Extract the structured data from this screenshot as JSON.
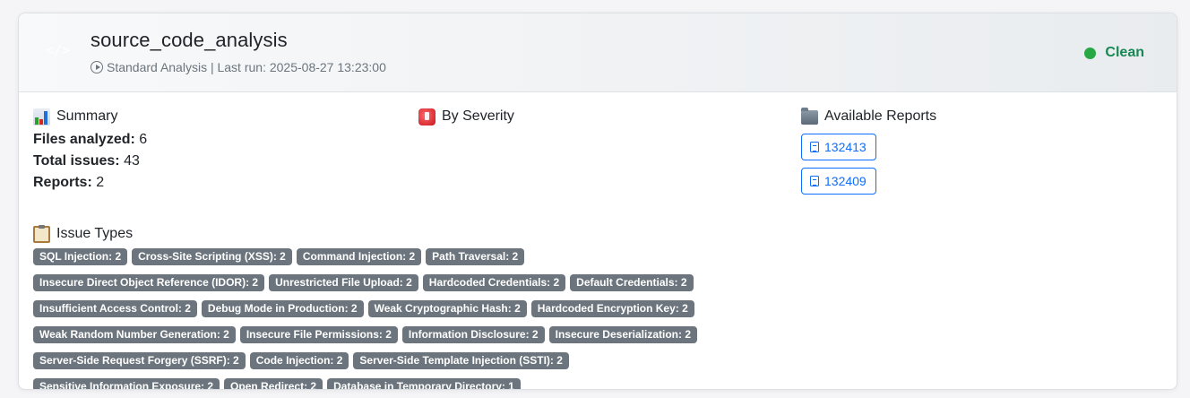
{
  "header": {
    "icon": "code-icon",
    "icon_glyph": "</>",
    "title": "source_code_analysis",
    "subtitle": "Standard Analysis | Last run: 2025-08-27 13:23:00",
    "status": {
      "label": "Clean",
      "color": "#198754",
      "dot_color": "#28a745"
    }
  },
  "summary": {
    "title": "Summary",
    "icon": "bar-chart-icon",
    "stats": [
      {
        "label": "Files analyzed:",
        "value": "6"
      },
      {
        "label": "Total issues:",
        "value": "43"
      },
      {
        "label": "Reports:",
        "value": "2"
      }
    ]
  },
  "severity": {
    "title": "By Severity",
    "icon": "siren-icon"
  },
  "reports": {
    "title": "Available Reports",
    "icon": "folder-icon",
    "items": [
      {
        "label": "132413",
        "icon": "document-icon"
      },
      {
        "label": "132409",
        "icon": "document-icon"
      }
    ]
  },
  "issue_types": {
    "title": "Issue Types",
    "icon": "clipboard-icon",
    "badge_color": "#6c757d",
    "items": [
      "SQL Injection: 2",
      "Cross-Site Scripting (XSS): 2",
      "Command Injection: 2",
      "Path Traversal: 2",
      "Insecure Direct Object Reference (IDOR): 2",
      "Unrestricted File Upload: 2",
      "Hardcoded Credentials: 2",
      "Default Credentials: 2",
      "Insufficient Access Control: 2",
      "Debug Mode in Production: 2",
      "Weak Cryptographic Hash: 2",
      "Hardcoded Encryption Key: 2",
      "Weak Random Number Generation: 2",
      "Insecure File Permissions: 2",
      "Information Disclosure: 2",
      "Insecure Deserialization: 2",
      "Server-Side Request Forgery (SSRF): 2",
      "Code Injection: 2",
      "Server-Side Template Injection (SSTI): 2",
      "Sensitive Information Exposure: 2",
      "Open Redirect: 2",
      "Database in Temporary Directory: 1"
    ]
  }
}
